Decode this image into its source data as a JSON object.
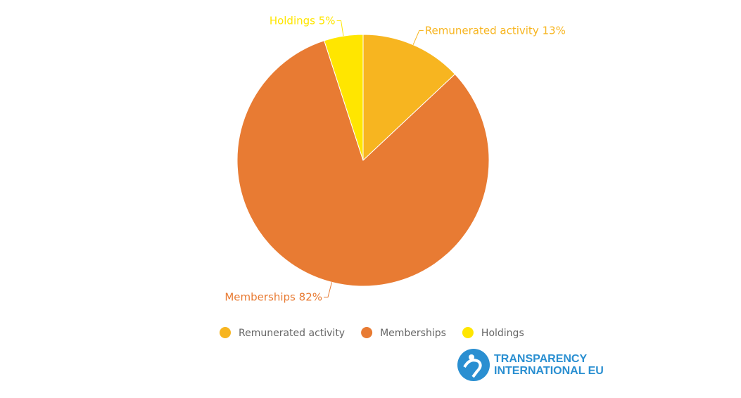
{
  "chart_data": {
    "type": "pie",
    "categories": [
      "Remunerated activity",
      "Memberships",
      "Holdings"
    ],
    "values": [
      13,
      82,
      5
    ],
    "value_labels": [
      "13%",
      "82%",
      "5%"
    ],
    "colors": [
      "#f7b520",
      "#e87b33",
      "#ffe600"
    ],
    "legend": "bottom"
  },
  "logo": {
    "line1": "TRANSPARENCY",
    "line2": "INTERNATIONAL EU"
  }
}
